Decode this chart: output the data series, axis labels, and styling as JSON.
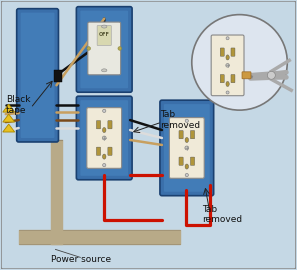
{
  "bg_color": "#c5d8e5",
  "border_color": "#999999",
  "box_blue": "#3a6faa",
  "box_blue_light": "#5090cc",
  "outlet_face": "#f0ead8",
  "outlet_slot": "#b0953a",
  "outlet_screw": "#c8c0a0",
  "wire_black": "#111111",
  "wire_white": "#dcdcdc",
  "wire_red": "#cc1100",
  "wire_brown": "#7a4a1a",
  "wire_tan": "#c8a060",
  "wire_gray": "#aaaaaa",
  "connector_yellow": "#e8c020",
  "conduit_color": "#b8aa88",
  "switch_face": "#e8e8e0",
  "switch_toggle": "#d0d080",
  "plier_color": "#aaaaaa",
  "labels": {
    "black_tape": "Black\ntape",
    "power_source": "Power source",
    "tab_removed1": "Tab\nremoved",
    "tab_removed2": "Tab\nremoved"
  },
  "font_size": 6.5
}
